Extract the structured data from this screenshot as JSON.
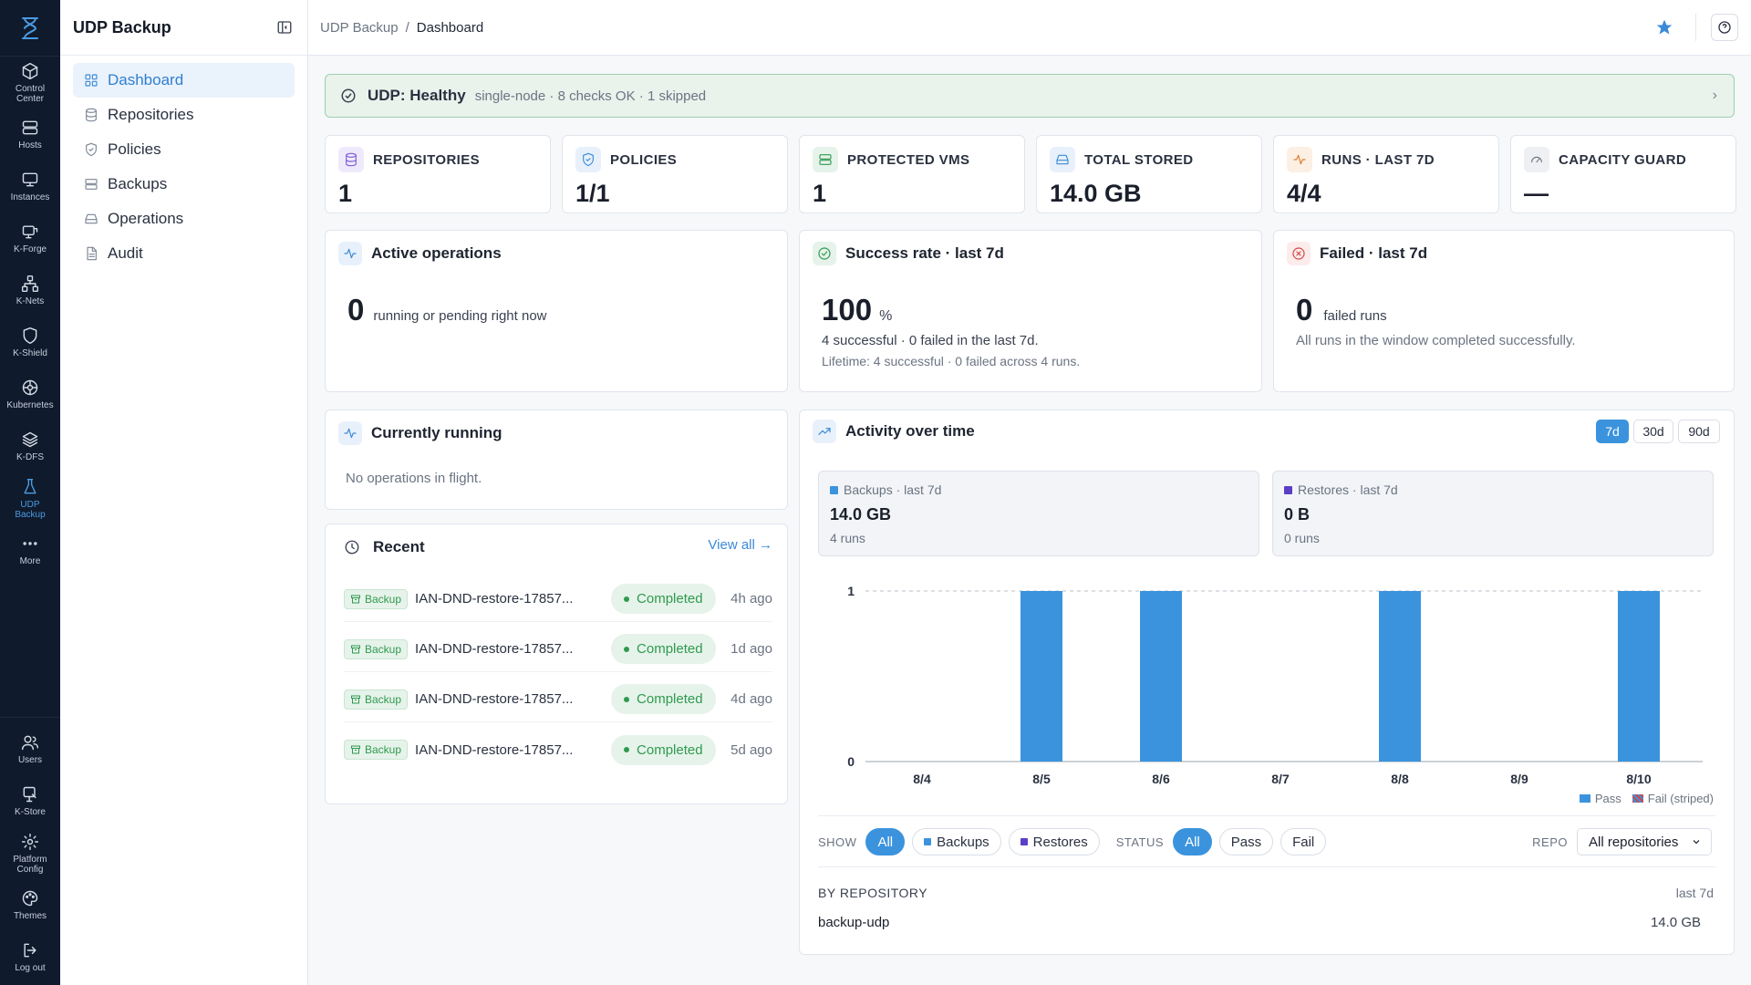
{
  "rail": {
    "top": [
      {
        "label": "Control\nCenter",
        "icon": "cube-icon"
      },
      {
        "label": "Hosts",
        "icon": "server-icon"
      },
      {
        "label": "Instances",
        "icon": "monitor-icon"
      },
      {
        "label": "K-Forge",
        "icon": "forge-icon"
      },
      {
        "label": "K-Nets",
        "icon": "network-icon"
      },
      {
        "label": "K-Shield",
        "icon": "shield-icon"
      },
      {
        "label": "Kubernetes",
        "icon": "helm-icon"
      },
      {
        "label": "K-DFS",
        "icon": "layers-icon"
      },
      {
        "label": "UDP\nBackup",
        "icon": "flask-icon"
      },
      {
        "label": "More",
        "icon": "more-icon"
      }
    ],
    "bottom": [
      {
        "label": "Users",
        "icon": "users-icon"
      },
      {
        "label": "K-Store",
        "icon": "store-icon"
      },
      {
        "label": "Platform\nConfig",
        "icon": "gear-icon"
      },
      {
        "label": "Themes",
        "icon": "palette-icon"
      },
      {
        "label": "Log out",
        "icon": "logout-icon"
      }
    ]
  },
  "sidebar": {
    "title": "UDP Backup",
    "items": [
      {
        "label": "Dashboard",
        "icon": "dashboard-icon"
      },
      {
        "label": "Repositories",
        "icon": "database-icon"
      },
      {
        "label": "Policies",
        "icon": "shield-check-icon"
      },
      {
        "label": "Backups",
        "icon": "archive-icon"
      },
      {
        "label": "Operations",
        "icon": "drive-icon"
      },
      {
        "label": "Audit",
        "icon": "file-icon"
      }
    ]
  },
  "breadcrumb": {
    "root": "UDP Backup",
    "sep": "/",
    "current": "Dashboard"
  },
  "banner": {
    "title": "UDP: Healthy",
    "subtitle": "single-node · 8 checks OK · 1 skipped"
  },
  "stats": [
    {
      "label": "REPOSITORIES",
      "value": "1",
      "icon": "database-icon",
      "color": "#7b5cd6",
      "bg": "#efeafb"
    },
    {
      "label": "POLICIES",
      "value": "1/1",
      "icon": "shield-check-icon",
      "color": "#3b8ad8",
      "bg": "#e8f1fb"
    },
    {
      "label": "PROTECTED VMS",
      "value": "1",
      "icon": "server-icon",
      "color": "#2f9a4f",
      "bg": "#e6f3ea"
    },
    {
      "label": "TOTAL STORED",
      "value": "14.0 GB",
      "icon": "drive-icon",
      "color": "#3b8ad8",
      "bg": "#e8f1fb"
    },
    {
      "label": "RUNS · LAST 7D",
      "value": "4/4",
      "icon": "activity-icon",
      "color": "#e07b2a",
      "bg": "#fcefe3"
    },
    {
      "label": "CAPACITY GUARD",
      "value": "—",
      "icon": "gauge-icon",
      "color": "#6b7482",
      "bg": "#eef0f3"
    }
  ],
  "active_ops": {
    "title": "Active operations",
    "value": "0",
    "text": "running or pending right now"
  },
  "success": {
    "title": "Success rate · last 7d",
    "value": "100",
    "unit": "%",
    "line1": "4 successful · 0 failed in the last 7d.",
    "line2": "Lifetime: 4 successful · 0 failed across 4 runs."
  },
  "failed": {
    "title": "Failed · last 7d",
    "value": "0",
    "unit": "failed runs",
    "line1": "All runs in the window completed successfully."
  },
  "running": {
    "title": "Currently running",
    "empty": "No operations in flight."
  },
  "recent": {
    "title": "Recent",
    "view_all": "View all →",
    "rows": [
      {
        "tag": "Backup",
        "name": "IAN-DND-restore-17857...",
        "status": "Completed",
        "time": "4h ago"
      },
      {
        "tag": "Backup",
        "name": "IAN-DND-restore-17857...",
        "status": "Completed",
        "time": "1d ago"
      },
      {
        "tag": "Backup",
        "name": "IAN-DND-restore-17857...",
        "status": "Completed",
        "time": "4d ago"
      },
      {
        "tag": "Backup",
        "name": "IAN-DND-restore-17857...",
        "status": "Completed",
        "time": "5d ago"
      }
    ]
  },
  "activity": {
    "title": "Activity over time",
    "ranges": [
      "7d",
      "30d",
      "90d"
    ],
    "active_range": "7d",
    "backups": {
      "label": "Backups · last 7d",
      "value": "14.0 GB",
      "sub": "4 runs",
      "color": "#3b93dd"
    },
    "restores": {
      "label": "Restores · last 7d",
      "value": "0 B",
      "sub": "0 runs",
      "color": "#5b3fc4"
    },
    "legend_pass": "Pass",
    "legend_fail": "Fail (striped)",
    "filters": {
      "show_label": "SHOW",
      "show": [
        "All",
        "Backups",
        "Restores"
      ],
      "status_label": "STATUS",
      "status": [
        "All",
        "Pass",
        "Fail"
      ],
      "repo_label": "REPO",
      "repo_value": "All repositories"
    },
    "by_repo": {
      "label": "BY REPOSITORY",
      "window": "last 7d",
      "name": "backup-udp",
      "size": "14.0 GB"
    }
  },
  "chart_data": {
    "type": "bar",
    "categories": [
      "8/4",
      "8/5",
      "8/6",
      "8/7",
      "8/8",
      "8/9",
      "8/10"
    ],
    "series": [
      {
        "name": "Pass",
        "values": [
          0,
          1,
          1,
          0,
          1,
          0,
          1
        ]
      }
    ],
    "ylim": [
      0,
      1
    ],
    "yticks": [
      0,
      1
    ],
    "color": "#3b93dd",
    "legend": [
      "Pass",
      "Fail (striped)"
    ],
    "legend_position": "bottom-right"
  }
}
